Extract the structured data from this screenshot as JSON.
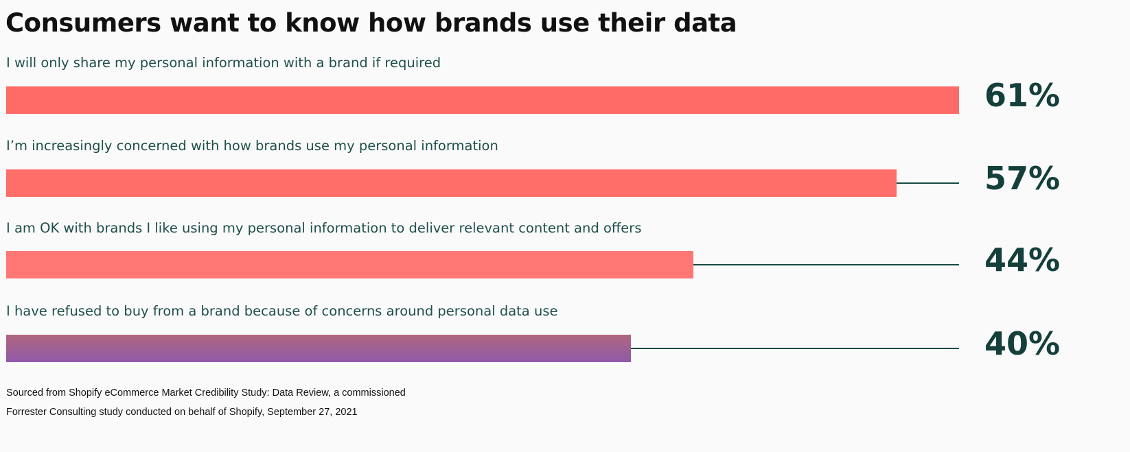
{
  "title": "Consumers want to know how brands use their data",
  "chart_data": {
    "type": "bar",
    "orientation": "horizontal",
    "title": "Consumers want to know how brands use their data",
    "categories": [
      "I will only share my personal information with a brand if required",
      "I’m increasingly concerned with how brands use my personal information",
      "I am OK with brands I like using my personal information to deliver relevant content and offers",
      "I have refused to buy from a brand because of concerns around personal data use"
    ],
    "values": [
      61,
      57,
      44,
      40
    ],
    "value_labels": [
      "61%",
      "57%",
      "44%",
      "40%"
    ],
    "bar_colors": [
      "#ff6b66",
      "#ff6e69",
      "#ff7775",
      "#9a5ea3"
    ],
    "xlim": [
      0,
      100
    ],
    "xlabel": "",
    "ylabel": ""
  },
  "colors": {
    "bar_coral": "#ff6b66",
    "bar_purple_top": "#b0667f",
    "bar_purple_bottom": "#8f5aa8",
    "track_line": "#164a44",
    "label_text": "#1e4f4a",
    "value_text": "#143f3b",
    "background": "#fafafa"
  },
  "source": {
    "line1": "Sourced from Shopify eCommerce Market Credibility Study: Data Review, a commissioned",
    "line2": "Forrester Consulting study conducted on behalf of Shopify, September 27, 2021"
  }
}
